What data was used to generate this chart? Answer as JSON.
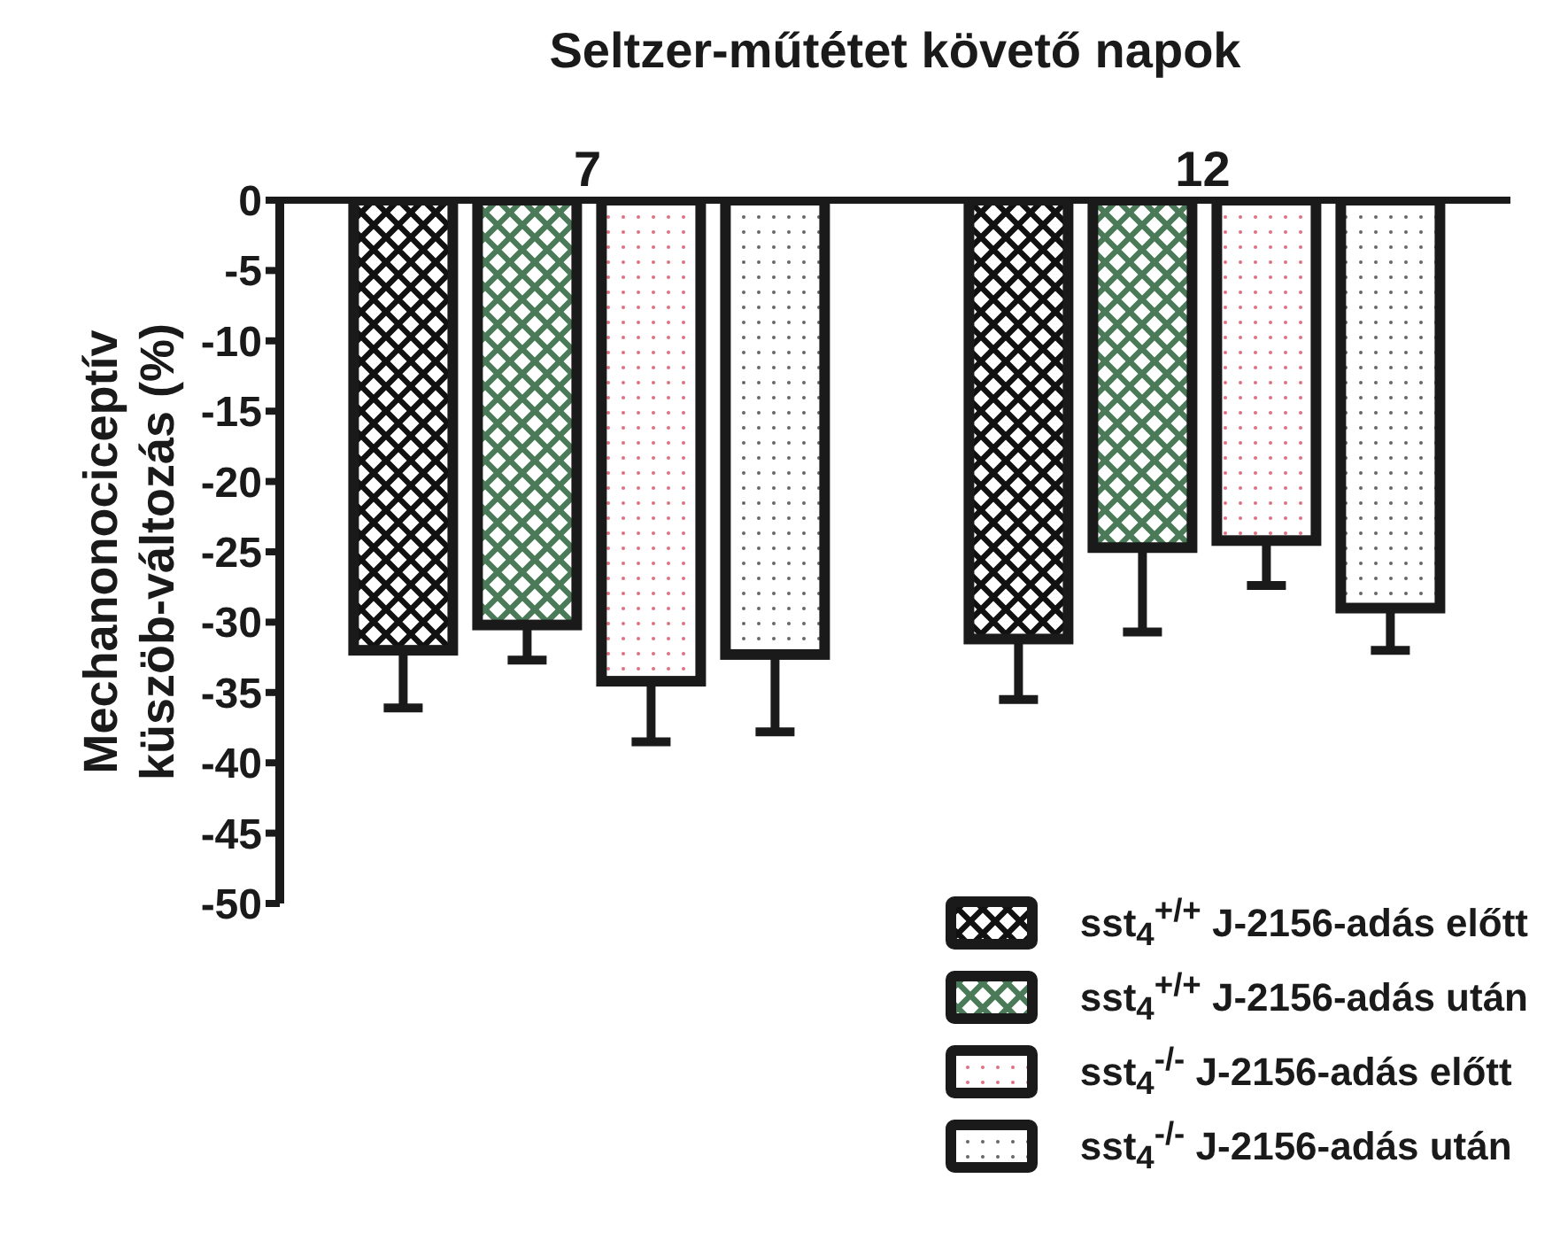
{
  "chart_data": {
    "type": "bar",
    "xlabel": "Seltzer-műtétet követő napok",
    "ylabel": "Mechanonociceptív\nküszöb-változás (%)",
    "categories": [
      "7",
      "12"
    ],
    "series": [
      {
        "name": "sst$_{4}$$^{+/+}$ J-2156-adás előtt",
        "color": "#111111",
        "values": [
          -32,
          -31.2
        ],
        "errors": [
          [
            -36.1,
            -32
          ],
          [
            -35.5,
            -31.2
          ]
        ]
      },
      {
        "name": "sst$_{4}$$^{+/+}$ J-2156-adás után",
        "color": "#4a7a58",
        "values": [
          -30.2,
          -24.7
        ],
        "errors": [
          [
            -32.7,
            -30.2
          ],
          [
            -30.7,
            -24.7
          ]
        ]
      },
      {
        "name": "sst$_{4}$$^{-/-}$ J-2156-adás előtt",
        "color": "#e0707f",
        "values": [
          -34.2,
          -24.2
        ],
        "errors": [
          [
            -38.5,
            -34.2
          ],
          [
            -27.4,
            -24.2
          ]
        ]
      },
      {
        "name": "sst$_{4}$$^{-/-}$ J-2156-adás után",
        "color": "#666666",
        "values": [
          -32.3,
          -29
        ],
        "errors": [
          [
            -37.8,
            -32.3
          ],
          [
            -32,
            -29
          ]
        ]
      }
    ],
    "ylim": [
      -50,
      0
    ],
    "yticks": [
      0,
      -5,
      -10,
      -15,
      -20,
      -25,
      -30,
      -35,
      -40,
      -45,
      -50
    ],
    "grid": false,
    "legend": "bottom right"
  }
}
